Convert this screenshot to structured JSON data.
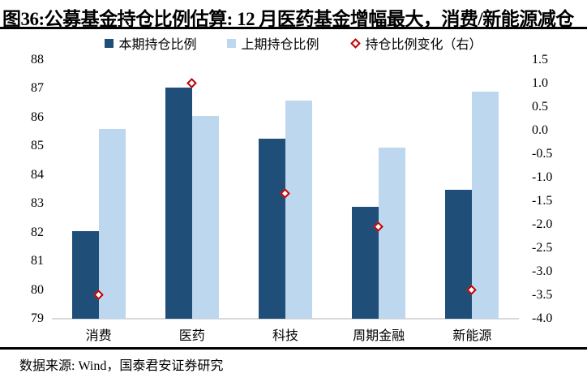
{
  "title": "图36:公募基金持仓比例估算: 12 月医药基金增幅最大，消费/新能源减仓",
  "source_note": "数据来源: Wind，国泰君安证券研究",
  "colors": {
    "current_bar": "#1F4E78",
    "previous_bar": "#BDD7EE",
    "change_marker": "#C00000",
    "axis_line": "#D9D9D9",
    "rule": "#000000"
  },
  "legend": [
    {
      "label": "本期持仓比例",
      "marker": "square",
      "color": "#1F4E78"
    },
    {
      "label": "上期持仓比例",
      "marker": "square",
      "color": "#BDD7EE"
    },
    {
      "label": "持仓比例变化（右）",
      "marker": "diamond",
      "color": "#C00000"
    }
  ],
  "chart_data": {
    "type": "bar",
    "title": "公募基金持仓比例估算",
    "categories": [
      "消费",
      "医药",
      "科技",
      "周期金融",
      "新能源"
    ],
    "series": [
      {
        "name": "本期持仓比例",
        "type": "bar",
        "axis": "left",
        "color": "#1F4E78",
        "values": [
          82.05,
          87.05,
          85.25,
          82.9,
          83.5
        ]
      },
      {
        "name": "上期持仓比例",
        "type": "bar",
        "axis": "left",
        "color": "#BDD7EE",
        "values": [
          85.6,
          86.05,
          86.6,
          84.95,
          86.9
        ]
      },
      {
        "name": "持仓比例变化（右）",
        "type": "scatter",
        "marker": "diamond",
        "axis": "right",
        "color": "#C00000",
        "values": [
          -3.5,
          1.0,
          -1.35,
          -2.05,
          -3.4
        ]
      }
    ],
    "left_axis": {
      "min": 79,
      "max": 88,
      "step": 1,
      "labels": [
        "88",
        "87",
        "86",
        "85",
        "84",
        "83",
        "82",
        "81",
        "80",
        "79"
      ]
    },
    "right_axis": {
      "min": -4.0,
      "max": 1.5,
      "step": 0.5,
      "labels": [
        "1.5",
        "1.0",
        "0.5",
        "0.0",
        "-0.5",
        "-1.0",
        "-1.5",
        "-2.0",
        "-2.5",
        "-3.0",
        "-3.5",
        "-4.0"
      ]
    },
    "grid": false,
    "legend_position": "top"
  }
}
